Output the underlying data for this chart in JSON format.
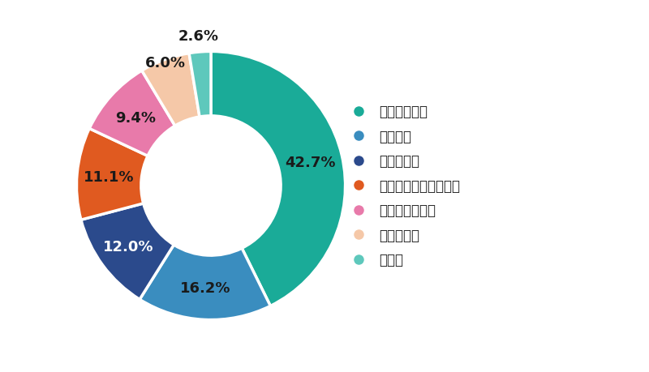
{
  "labels": [
    "態度が大きい",
    "頼りない",
    "世間知らず",
    "見た目に気を使えない",
    "何事にも消極的",
    "つまらない",
    "その他"
  ],
  "values": [
    42.7,
    16.2,
    12.0,
    11.1,
    9.4,
    6.0,
    2.6
  ],
  "colors": [
    "#1aab98",
    "#3a8dbf",
    "#2b4a8c",
    "#e05a20",
    "#e87aaa",
    "#f5c8a8",
    "#5ec8bc"
  ],
  "pct_labels": [
    "42.7%",
    "16.2%",
    "12.0%",
    "11.1%",
    "9.4%",
    "6.0%",
    "2.6%"
  ],
  "text_colors": [
    "#1a1a1a",
    "#1a1a1a",
    "#ffffff",
    "#1a1a1a",
    "#1a1a1a",
    "#1a1a1a",
    "#1a1a1a"
  ],
  "startangle": 90,
  "background_color": "#ffffff",
  "label_fontsize": 13,
  "legend_fontsize": 12,
  "donut_width": 0.48
}
